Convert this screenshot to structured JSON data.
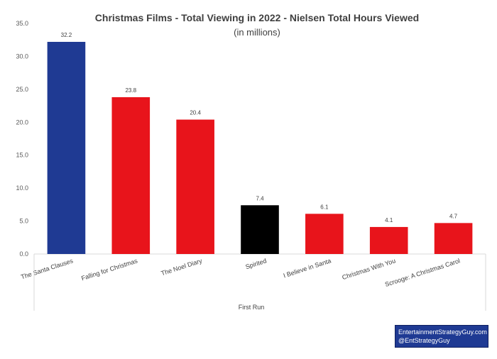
{
  "chart_data": {
    "type": "bar",
    "title": "Christmas Films - Total Viewing in 2022 - Nielsen Total Hours Viewed",
    "subtitle": "(in millions)",
    "categories": [
      "The Santa Clauses",
      "Falling for Christmas",
      "The Noel Diary",
      "Spirited",
      "I Believe in Santa",
      "Christmas With You",
      "Scrooge: A Christmas Carol"
    ],
    "values": [
      32.2,
      23.8,
      20.4,
      7.4,
      6.1,
      4.1,
      4.7
    ],
    "data_labels": [
      "32.2",
      "23.8",
      "20.4",
      "7.4",
      "6.1",
      "4.1",
      "4.7"
    ],
    "bar_colors": [
      "#1f3a93",
      "#e8141b",
      "#e8141b",
      "#000000",
      "#e8141b",
      "#e8141b",
      "#e8141b"
    ],
    "ylim": [
      0,
      35
    ],
    "yticks": [
      "0.0",
      "5.0",
      "10.0",
      "15.0",
      "20.0",
      "25.0",
      "30.0",
      "35.0"
    ],
    "group_label": "First Run",
    "xlabel": "",
    "ylabel": "",
    "grid": false,
    "legend": "none"
  },
  "credit": {
    "line1": "EntertainmentStrategyGuy.com",
    "line2": "@EntStrategyGuy"
  },
  "colors": {
    "credit_background": "#1f3a93",
    "text": "#404040"
  }
}
